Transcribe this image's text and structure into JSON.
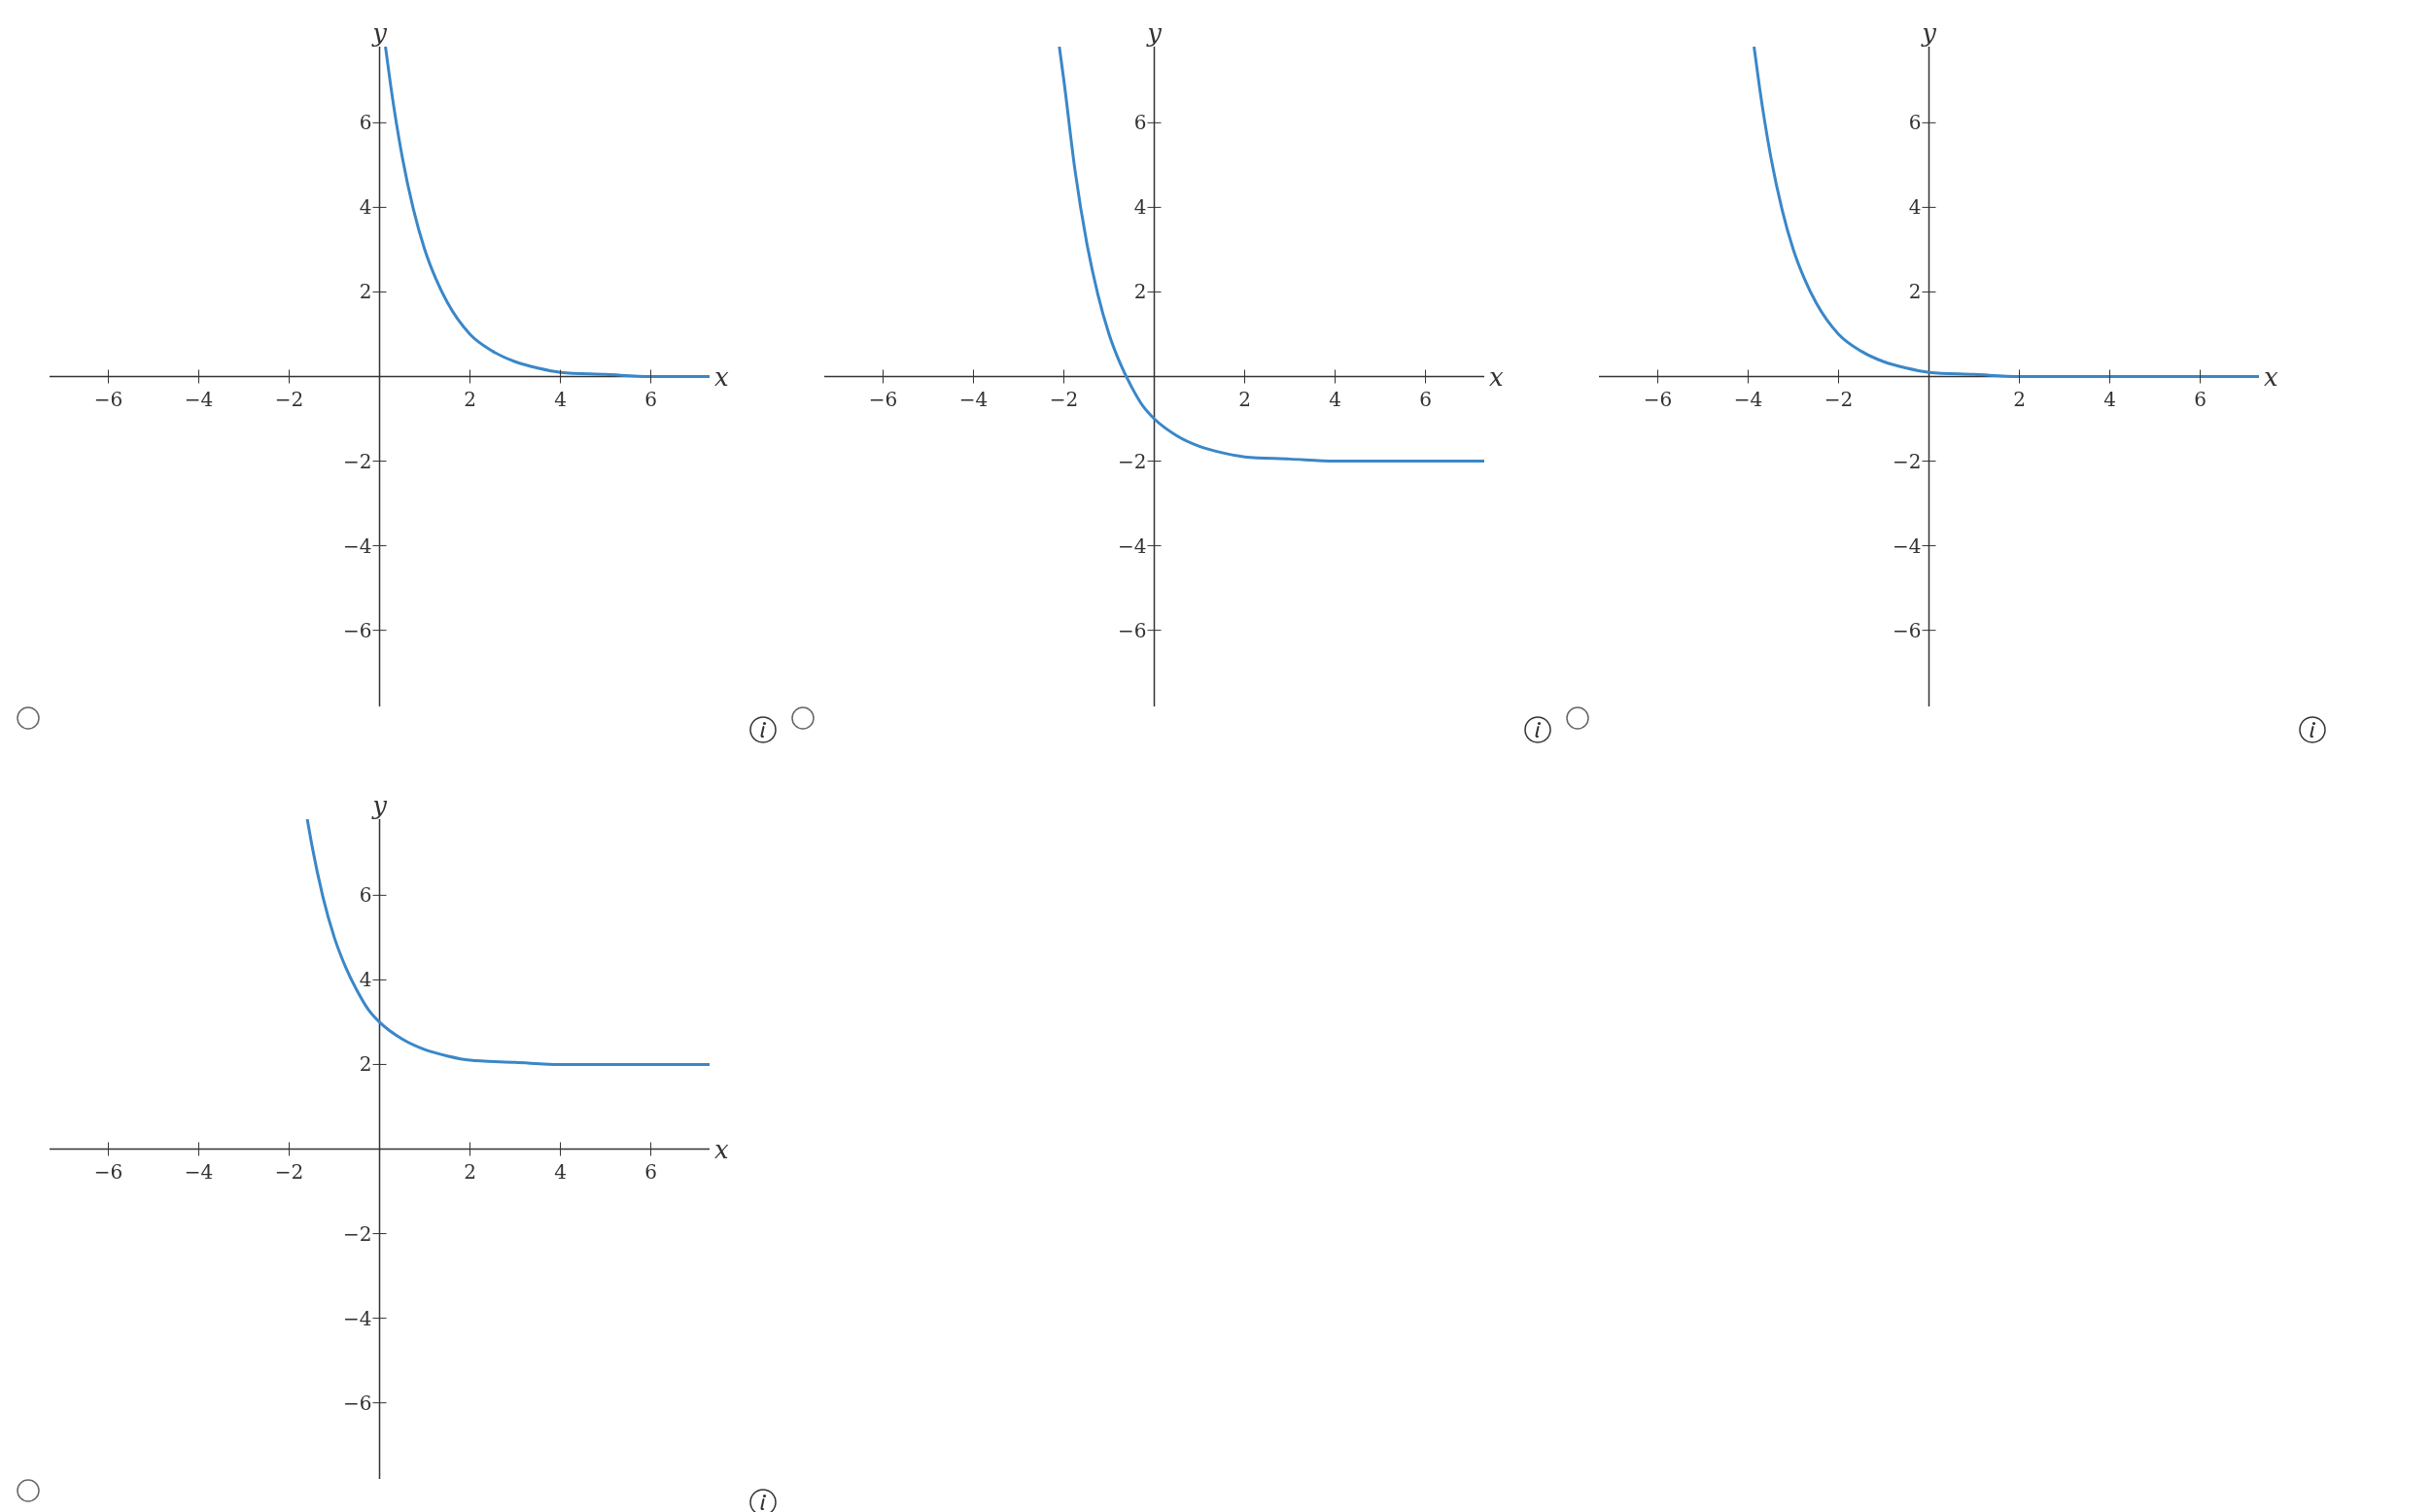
{
  "chart_data": [
    {
      "type": "line",
      "xlabel": "x",
      "ylabel": "y",
      "xlim": [
        -7.3,
        7.3
      ],
      "ylim": [
        -7.8,
        7.8
      ],
      "xticks": [
        {
          "value": -6,
          "label": "−6"
        },
        {
          "value": -4,
          "label": "−4"
        },
        {
          "value": -2,
          "label": "−2"
        },
        2,
        4,
        6
      ],
      "yticks": [
        {
          "value": -6,
          "label": "−6"
        },
        {
          "value": -4,
          "label": "−4"
        },
        {
          "value": -2,
          "label": "−2"
        },
        2,
        4,
        6
      ],
      "grid": false,
      "marker": "none",
      "line_style": "solid",
      "series": [
        {
          "color": "#3a87c8",
          "x": [
            0.13,
            0.25,
            0.5,
            0.75,
            1,
            1.25,
            1.5,
            2,
            2.5,
            3,
            3.5,
            4,
            5,
            6,
            7.3
          ],
          "values": [
            7.8,
            6.85,
            5.2,
            3.95,
            3,
            2.3,
            1.75,
            1,
            0.6,
            0.35,
            0.2,
            0.1,
            0.05,
            0,
            0
          ]
        }
      ]
    },
    {
      "type": "line",
      "xlabel": "x",
      "ylabel": "y",
      "xlim": [
        -7.3,
        7.3
      ],
      "ylim": [
        -7.8,
        7.8
      ],
      "xticks": [
        {
          "value": -6,
          "label": "−6"
        },
        {
          "value": -4,
          "label": "−4"
        },
        {
          "value": -2,
          "label": "−2"
        },
        2,
        4,
        6
      ],
      "yticks": [
        {
          "value": -6,
          "label": "−6"
        },
        {
          "value": -4,
          "label": "−4"
        },
        {
          "value": -2,
          "label": "−2"
        },
        2,
        4,
        6
      ],
      "grid": false,
      "marker": "none",
      "line_style": "solid",
      "series": [
        {
          "color": "#3a87c8",
          "x": [
            -2.1,
            -2,
            -1.75,
            -1.5,
            -1.25,
            -1,
            -0.75,
            -0.5,
            -0.25,
            0,
            0.5,
            1,
            1.5,
            2,
            3,
            4,
            5,
            7.3
          ],
          "values": [
            7.8,
            7,
            4.85,
            3.2,
            1.95,
            1,
            0.3,
            -0.25,
            -0.7,
            -1,
            -1.4,
            -1.65,
            -1.8,
            -1.9,
            -1.95,
            -2,
            -2,
            -2
          ]
        }
      ]
    },
    {
      "type": "line",
      "xlabel": "x",
      "ylabel": "y",
      "xlim": [
        -7.3,
        7.3
      ],
      "ylim": [
        -7.8,
        7.8
      ],
      "xticks": [
        {
          "value": -6,
          "label": "−6"
        },
        {
          "value": -4,
          "label": "−4"
        },
        {
          "value": -2,
          "label": "−2"
        },
        2,
        4,
        6
      ],
      "yticks": [
        {
          "value": -6,
          "label": "−6"
        },
        {
          "value": -4,
          "label": "−4"
        },
        {
          "value": -2,
          "label": "−2"
        },
        2,
        4,
        6
      ],
      "grid": false,
      "marker": "none",
      "line_style": "solid",
      "series": [
        {
          "color": "#3a87c8",
          "x": [
            -3.87,
            -3.75,
            -3.5,
            -3.25,
            -3,
            -2.75,
            -2.5,
            -2,
            -1.5,
            -1,
            -0.5,
            0,
            1,
            2,
            7.3
          ],
          "values": [
            7.8,
            6.85,
            5.2,
            3.95,
            3,
            2.3,
            1.75,
            1,
            0.6,
            0.35,
            0.2,
            0.1,
            0.05,
            0,
            0
          ]
        }
      ]
    },
    {
      "type": "line",
      "xlabel": "x",
      "ylabel": "y",
      "xlim": [
        -7.3,
        7.3
      ],
      "ylim": [
        -7.8,
        7.8
      ],
      "xticks": [
        {
          "value": -6,
          "label": "−6"
        },
        {
          "value": -4,
          "label": "−4"
        },
        {
          "value": -2,
          "label": "−2"
        },
        2,
        4,
        6
      ],
      "yticks": [
        {
          "value": -6,
          "label": "−6"
        },
        {
          "value": -4,
          "label": "−4"
        },
        {
          "value": -2,
          "label": "−2"
        },
        2,
        4,
        6
      ],
      "grid": false,
      "marker": "none",
      "line_style": "solid",
      "series": [
        {
          "color": "#3a87c8",
          "x": [
            -1.6,
            -1.5,
            -1.25,
            -1,
            -0.75,
            -0.5,
            -0.25,
            0,
            0.5,
            1,
            1.5,
            2,
            3,
            4,
            7.3
          ],
          "values": [
            7.8,
            7.2,
            5.95,
            5,
            4.3,
            3.75,
            3.3,
            3,
            2.6,
            2.35,
            2.2,
            2.1,
            2.05,
            2,
            2
          ]
        }
      ]
    }
  ]
}
